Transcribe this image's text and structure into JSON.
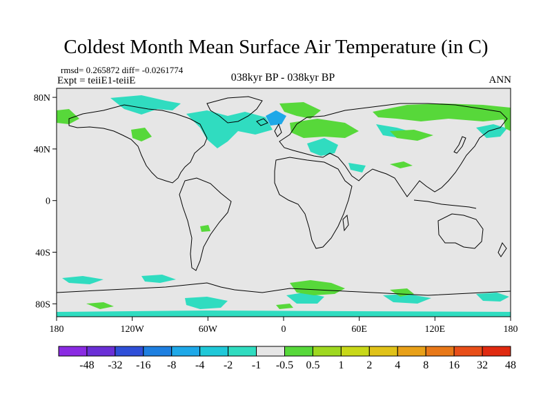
{
  "header": {
    "title": "Coldest Month Mean Surface Air Temperature (in C)",
    "stats": "rmsd= 0.265872 diff= -0.0261774",
    "experiment": "Expt = teiiE1-teiiE",
    "center_label": "038kyr BP - 038kyr BP",
    "season": "ANN"
  },
  "map": {
    "projection": "cylindrical-equidistant",
    "background_color": "#e6e6e6",
    "lat_labels": [
      "80N",
      "40N",
      "0",
      "40S",
      "80S"
    ],
    "lat_values": [
      80,
      40,
      0,
      -40,
      -80
    ],
    "lon_labels": [
      "180",
      "120W",
      "60W",
      "0",
      "60E",
      "120E",
      "180"
    ],
    "lon_values": [
      -180,
      -120,
      -60,
      0,
      60,
      120,
      180
    ]
  },
  "colorbar": {
    "colors": [
      "#8a2be2",
      "#6a2fd6",
      "#2f4fd8",
      "#1e7fe0",
      "#1ea8e8",
      "#20c8d8",
      "#30dcc0",
      "#e6e6e6",
      "#57d83a",
      "#9ed820",
      "#c8d818",
      "#e0c218",
      "#e8a018",
      "#e87818",
      "#e84e18",
      "#e02a10"
    ],
    "labels": [
      "-48",
      "-32",
      "-16",
      "-8",
      "-4",
      "-2",
      "-1",
      "-0.5",
      "0.5",
      "1",
      "2",
      "4",
      "8",
      "16",
      "32",
      "48"
    ]
  }
}
